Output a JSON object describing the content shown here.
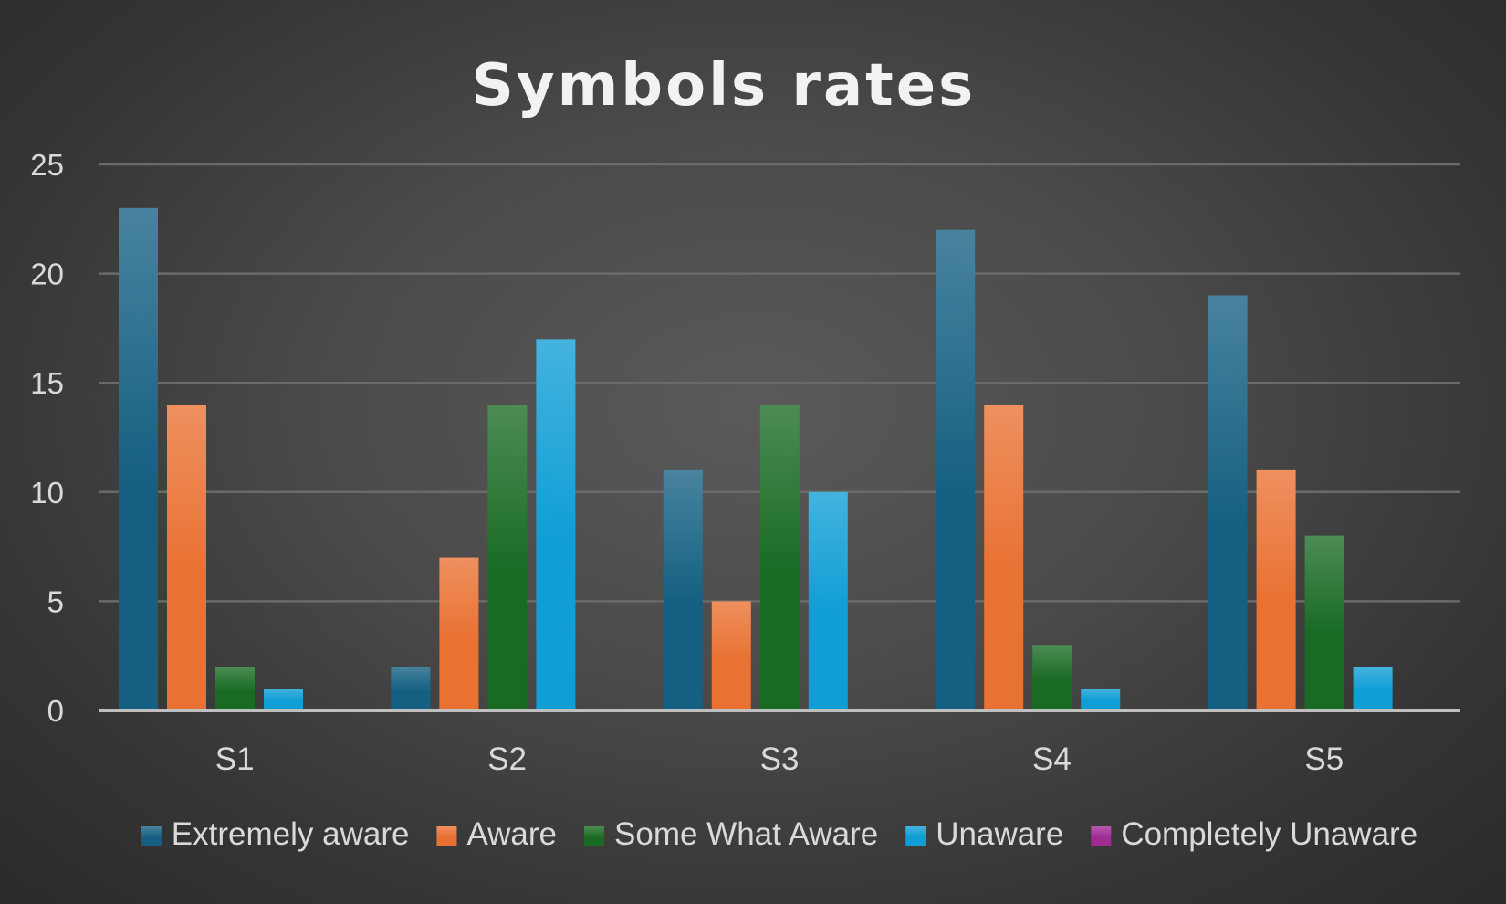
{
  "chart_data": {
    "type": "bar",
    "title": "Symbols rates",
    "xlabel": "",
    "ylabel": "",
    "categories": [
      "S1",
      "S2",
      "S3",
      "S4",
      "S5"
    ],
    "ylim": [
      0,
      25
    ],
    "yticks": [
      0,
      5,
      10,
      15,
      20,
      25
    ],
    "grid": true,
    "legend_position": "bottom",
    "series": [
      {
        "name": "Extremely aware",
        "color": "#156082",
        "values": [
          23,
          2,
          11,
          22,
          19
        ]
      },
      {
        "name": "Aware",
        "color": "#E97132",
        "values": [
          14,
          7,
          5,
          14,
          11
        ]
      },
      {
        "name": "Some What Aware",
        "color": "#196B24",
        "values": [
          2,
          14,
          14,
          3,
          8
        ]
      },
      {
        "name": "Unaware",
        "color": "#0F9ED5",
        "values": [
          1,
          17,
          10,
          1,
          2
        ]
      },
      {
        "name": "Completely Unaware",
        "color": "#A02B93",
        "values": [
          0,
          0,
          0,
          0,
          0
        ]
      }
    ]
  }
}
